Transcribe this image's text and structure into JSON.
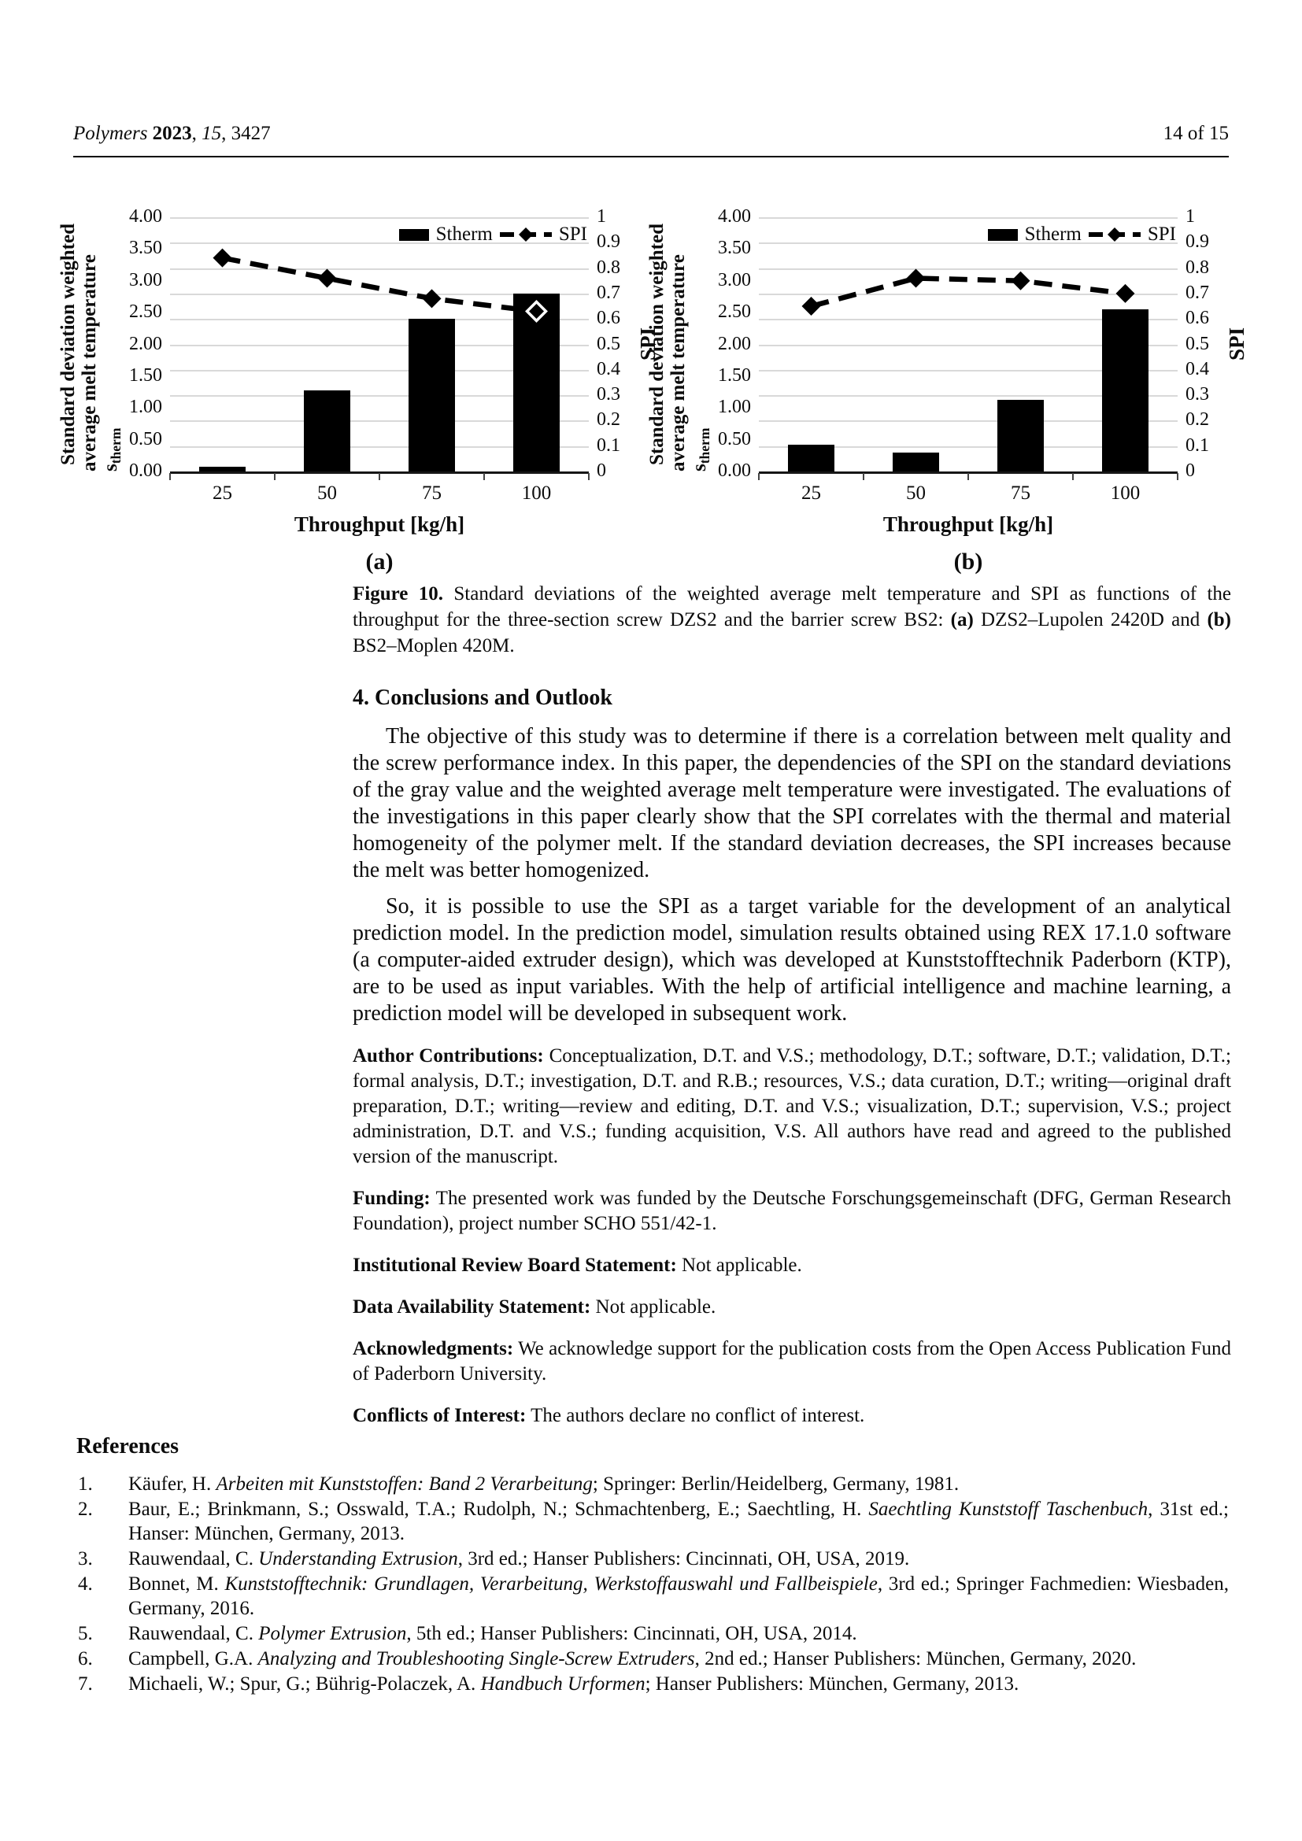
{
  "header": {
    "journal_segments": [
      {
        "t": "Polymers ",
        "i": true
      },
      {
        "t": "2023",
        "b": true
      },
      {
        "t": ", "
      },
      {
        "t": "15",
        "i": true
      },
      {
        "t": ", 3427"
      }
    ],
    "page_label": "14 of 15"
  },
  "chart_data": [
    {
      "type": "bar+line",
      "sublabel": "(a)",
      "legend": {
        "bar_label": "Stherm",
        "line_label": "SPI",
        "position": "top-right"
      },
      "x": {
        "title": "Throughput [kg/h]",
        "categories": [
          "25",
          "50",
          "75",
          "100"
        ]
      },
      "y_left": {
        "title_line1": "Standard deviation weighted",
        "title_line2_main": "average melt temperature s",
        "title_line2_sub": "therm",
        "ticks": [
          "4.00",
          "3.50",
          "3.00",
          "2.50",
          "2.00",
          "1.50",
          "1.00",
          "0.50",
          "0.00"
        ],
        "min": 0,
        "max": 4
      },
      "y_right": {
        "title": "SPI",
        "ticks": [
          "1",
          "0.9",
          "0.8",
          "0.7",
          "0.6",
          "0.5",
          "0.4",
          "0.3",
          "0.2",
          "0.1",
          "0"
        ],
        "min": 0,
        "max": 1
      },
      "series": [
        {
          "name": "Stherm",
          "kind": "bar",
          "axis": "left",
          "values": [
            0.07,
            1.27,
            2.4,
            2.8
          ]
        },
        {
          "name": "SPI",
          "kind": "line",
          "axis": "right",
          "values": [
            0.84,
            0.76,
            0.68,
            0.63
          ]
        }
      ],
      "open_marker_indices": [
        3
      ],
      "grid": true,
      "colors": {
        "bar": "#000000",
        "line": "#000000",
        "gridline": "#d9d9d9"
      }
    },
    {
      "type": "bar+line",
      "sublabel": "(b)",
      "legend": {
        "bar_label": "Stherm",
        "line_label": "SPI",
        "position": "top-right"
      },
      "x": {
        "title": "Throughput [kg/h]",
        "categories": [
          "25",
          "50",
          "75",
          "100"
        ]
      },
      "y_left": {
        "title_line1": "Standard deviation weighted",
        "title_line2_main": "average melt temperature s",
        "title_line2_sub": "therm",
        "ticks": [
          "4.00",
          "3.50",
          "3.00",
          "2.50",
          "2.00",
          "1.50",
          "1.00",
          "0.50",
          "0.00"
        ],
        "min": 0,
        "max": 4
      },
      "y_right": {
        "title": "SPI",
        "ticks": [
          "1",
          "0.9",
          "0.8",
          "0.7",
          "0.6",
          "0.5",
          "0.4",
          "0.3",
          "0.2",
          "0.1",
          "0"
        ],
        "min": 0,
        "max": 1
      },
      "series": [
        {
          "name": "Stherm",
          "kind": "bar",
          "axis": "left",
          "values": [
            0.42,
            0.3,
            1.13,
            2.55
          ]
        },
        {
          "name": "SPI",
          "kind": "line",
          "axis": "right",
          "values": [
            0.65,
            0.76,
            0.75,
            0.7
          ]
        }
      ],
      "open_marker_indices": [],
      "grid": true,
      "colors": {
        "bar": "#000000",
        "line": "#000000",
        "gridline": "#d9d9d9"
      }
    }
  ],
  "figure_caption_segments": [
    {
      "t": "Figure 10. ",
      "b": true
    },
    {
      "t": "Standard deviations of the weighted average melt temperature and SPI as functions of the throughput for the three-section screw DZS2 and the barrier screw BS2: "
    },
    {
      "t": "(a)",
      "b": true
    },
    {
      "t": " DZS2–Lupolen 2420D and "
    },
    {
      "t": "(b)",
      "b": true
    },
    {
      "t": " BS2–Moplen 420M."
    }
  ],
  "section": {
    "heading": "4. Conclusions and Outlook",
    "para1": "The objective of this study was to determine if there is a correlation between melt quality and the screw performance index. In this paper, the dependencies of the SPI on the standard deviations of the gray value and the weighted average melt temperature were investigated. The evaluations of the investigations in this paper clearly show that the SPI correlates with the thermal and material homogeneity of the polymer melt. If the standard deviation decreases, the SPI increases because the melt was better homogenized.",
    "para2": "So, it is possible to use the SPI as a target variable for the development of an analytical prediction model. In the prediction model, simulation results obtained using REX 17.1.0 software (a computer-aided extruder design), which was developed at Kunststofftechnik Paderborn (KTP), are to be used as input variables. With the help of artificial intelligence and machine learning, a prediction model will be developed in subsequent work."
  },
  "statements": [
    {
      "label": "Author Contributions:",
      "text": " Conceptualization, D.T. and V.S.; methodology, D.T.; software, D.T.; validation, D.T.; formal analysis, D.T.; investigation, D.T. and R.B.; resources, V.S.; data curation, D.T.; writing—original draft preparation, D.T.; writing—review and editing, D.T. and V.S.; visualization, D.T.; supervision, V.S.; project administration, D.T. and V.S.; funding acquisition, V.S. All authors have read and agreed to the published version of the manuscript."
    },
    {
      "label": "Funding:",
      "text": " The presented work was funded by the Deutsche Forschungsgemeinschaft (DFG, German Research Foundation), project number SCHO 551/42-1."
    },
    {
      "label": "Institutional Review Board Statement:",
      "text": " Not applicable."
    },
    {
      "label": "Data Availability Statement:",
      "text": " Not applicable."
    },
    {
      "label": "Acknowledgments:",
      "text": " We acknowledge support for the publication costs from the Open Access Publication Fund of Paderborn University."
    },
    {
      "label": "Conflicts of Interest:",
      "text": " The authors declare no conflict of interest."
    }
  ],
  "references": {
    "heading": "References",
    "items": [
      {
        "num": "1.",
        "segments": [
          {
            "t": "Käufer, H. "
          },
          {
            "t": "Arbeiten mit Kunststoffen: Band 2 Verarbeitung",
            "i": true
          },
          {
            "t": "; Springer: Berlin/Heidelberg, Germany, 1981."
          }
        ]
      },
      {
        "num": "2.",
        "segments": [
          {
            "t": "Baur, E.; Brinkmann, S.; Osswald, T.A.; Rudolph, N.; Schmachtenberg, E.; Saechtling, H. "
          },
          {
            "t": "Saechtling Kunststoff Taschenbuch",
            "i": true
          },
          {
            "t": ", 31st ed.; Hanser: München, Germany, 2013."
          }
        ]
      },
      {
        "num": "3.",
        "segments": [
          {
            "t": "Rauwendaal, C. "
          },
          {
            "t": "Understanding Extrusion",
            "i": true
          },
          {
            "t": ", 3rd ed.; Hanser Publishers: Cincinnati, OH, USA, 2019."
          }
        ]
      },
      {
        "num": "4.",
        "segments": [
          {
            "t": "Bonnet, M. "
          },
          {
            "t": "Kunststofftechnik: Grundlagen, Verarbeitung, Werkstoffauswahl und Fallbeispiele",
            "i": true
          },
          {
            "t": ", 3rd ed.; Springer Fachmedien: Wiesbaden, Germany, 2016."
          }
        ]
      },
      {
        "num": "5.",
        "segments": [
          {
            "t": "Rauwendaal, C. "
          },
          {
            "t": "Polymer Extrusion",
            "i": true
          },
          {
            "t": ", 5th ed.; Hanser Publishers: Cincinnati, OH, USA, 2014."
          }
        ]
      },
      {
        "num": "6.",
        "segments": [
          {
            "t": "Campbell, G.A. "
          },
          {
            "t": "Analyzing and Troubleshooting Single-Screw Extruders",
            "i": true
          },
          {
            "t": ", 2nd ed.; Hanser Publishers: München, Germany, 2020."
          }
        ]
      },
      {
        "num": "7.",
        "segments": [
          {
            "t": "Michaeli, W.; Spur, G.; Bührig-Polaczek, A. "
          },
          {
            "t": "Handbuch Urformen",
            "i": true
          },
          {
            "t": "; Hanser Publishers: München, Germany, 2013."
          }
        ]
      }
    ]
  }
}
